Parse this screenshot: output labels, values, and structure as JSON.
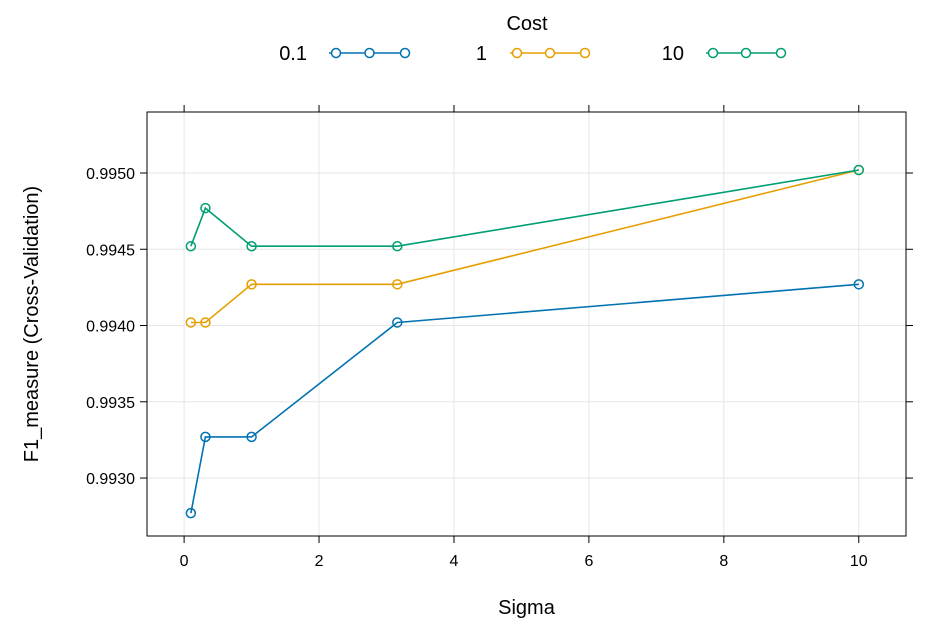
{
  "chart_data": {
    "type": "line",
    "legend_title": "Cost",
    "legend_position": "top",
    "xlabel": "Sigma",
    "ylabel": "F1_measure (Cross-Validation)",
    "xlim": [
      -0.55,
      10.7
    ],
    "ylim": [
      0.99262,
      0.9954
    ],
    "x_ticks": [
      0,
      2,
      4,
      6,
      8,
      10
    ],
    "x_tick_labels": [
      "0",
      "2",
      "4",
      "6",
      "8",
      "10"
    ],
    "y_ticks": [
      0.993,
      0.9935,
      0.994,
      0.9945,
      0.995
    ],
    "y_tick_labels": [
      "0.9930",
      "0.9935",
      "0.9940",
      "0.9945",
      "0.9950"
    ],
    "grid": true,
    "x": [
      0.1,
      0.316,
      1,
      3.16,
      10
    ],
    "series": [
      {
        "name": "0.1",
        "color": "#0072B2",
        "values": [
          0.99277,
          0.99327,
          0.99327,
          0.99402,
          0.99427
        ]
      },
      {
        "name": "1",
        "color": "#E69F00",
        "values": [
          0.99402,
          0.99402,
          0.99427,
          0.99427,
          0.99502
        ]
      },
      {
        "name": "10",
        "color": "#009E73",
        "values": [
          0.99452,
          0.99477,
          0.99452,
          0.99452,
          0.99502
        ]
      }
    ]
  }
}
